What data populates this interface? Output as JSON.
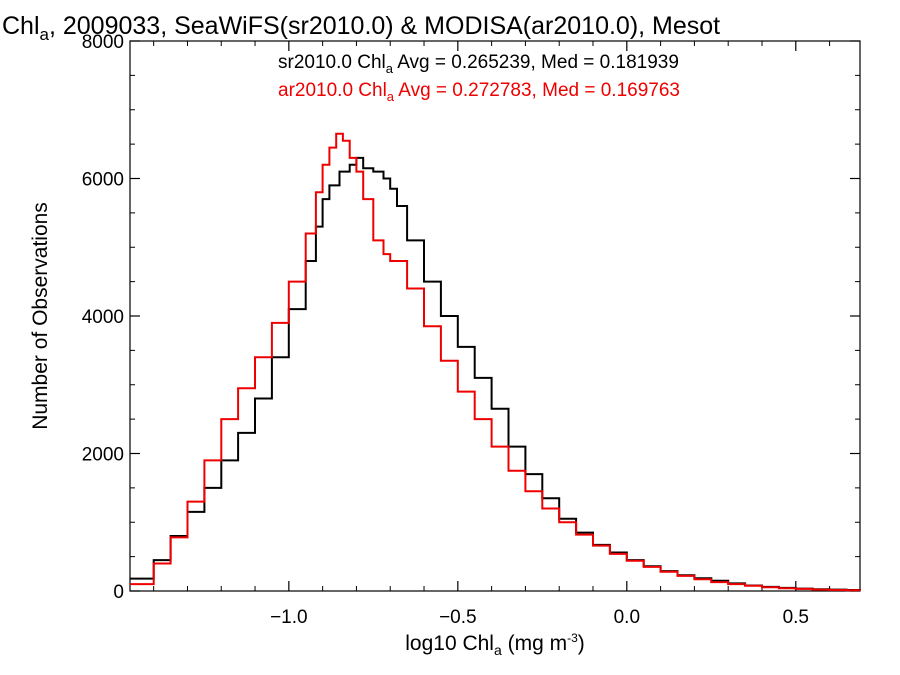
{
  "chart_data": {
    "type": "line",
    "title_main": "Chl",
    "title_sub": "a",
    "title_rest": ", 2009033, SeaWiFS(sr2010.0) & MODISA(ar2010.0), Mesot",
    "xlabel_main": "log10 Chl",
    "xlabel_sub": "a",
    "xlabel_rest": " (mg m",
    "xlabel_sup": "-3",
    "xlabel_end": ")",
    "ylabel": "Number of Observations",
    "xlim": [
      -1.47,
      0.69
    ],
    "ylim": [
      0,
      8000
    ],
    "xticks": [
      -1.0,
      -0.5,
      0.0,
      0.5
    ],
    "xtick_labels": [
      "−1.0",
      "−0.5",
      "0.0",
      "0.5"
    ],
    "yticks": [
      0,
      2000,
      4000,
      6000,
      8000
    ],
    "ytick_labels": [
      "0",
      "2000",
      "4000",
      "6000",
      "8000"
    ],
    "grid": false,
    "legend_position": "top-right",
    "series": [
      {
        "name": "sr2010.0",
        "label_main": "sr2010.0 Chl",
        "label_sub": "a",
        "label_rest": " Avg = 0.265239, Med = 0.181939",
        "color": "#000000",
        "x": [
          -1.47,
          -1.4,
          -1.35,
          -1.3,
          -1.25,
          -1.2,
          -1.15,
          -1.1,
          -1.05,
          -1.0,
          -0.95,
          -0.92,
          -0.9,
          -0.88,
          -0.85,
          -0.82,
          -0.8,
          -0.78,
          -0.75,
          -0.72,
          -0.7,
          -0.68,
          -0.65,
          -0.6,
          -0.55,
          -0.5,
          -0.45,
          -0.4,
          -0.35,
          -0.3,
          -0.25,
          -0.2,
          -0.15,
          -0.1,
          -0.05,
          0.0,
          0.05,
          0.1,
          0.15,
          0.2,
          0.25,
          0.3,
          0.35,
          0.4,
          0.45,
          0.5,
          0.55,
          0.6,
          0.65,
          0.69
        ],
        "y": [
          180,
          450,
          800,
          1150,
          1500,
          1900,
          2300,
          2800,
          3400,
          4100,
          4800,
          5300,
          5700,
          5900,
          6100,
          6200,
          6300,
          6150,
          6100,
          6000,
          5850,
          5600,
          5100,
          4500,
          4000,
          3550,
          3100,
          2650,
          2100,
          1700,
          1350,
          1050,
          850,
          670,
          560,
          450,
          360,
          290,
          230,
          185,
          150,
          110,
          80,
          60,
          45,
          35,
          25,
          20,
          15,
          10
        ]
      },
      {
        "name": "ar2010.0",
        "label_main": "ar2010.0 Chl",
        "label_sub": "a",
        "label_rest": " Avg = 0.272783, Med = 0.169763",
        "color": "#ee0000",
        "x": [
          -1.47,
          -1.4,
          -1.35,
          -1.3,
          -1.25,
          -1.2,
          -1.15,
          -1.1,
          -1.05,
          -1.0,
          -0.95,
          -0.92,
          -0.9,
          -0.88,
          -0.86,
          -0.84,
          -0.82,
          -0.8,
          -0.78,
          -0.75,
          -0.72,
          -0.7,
          -0.65,
          -0.6,
          -0.55,
          -0.5,
          -0.45,
          -0.4,
          -0.35,
          -0.3,
          -0.25,
          -0.2,
          -0.15,
          -0.1,
          -0.05,
          0.0,
          0.05,
          0.1,
          0.15,
          0.2,
          0.25,
          0.3,
          0.35,
          0.4,
          0.45,
          0.5,
          0.55,
          0.6,
          0.65,
          0.69
        ],
        "y": [
          100,
          400,
          780,
          1300,
          1900,
          2500,
          2950,
          3400,
          3900,
          4500,
          5200,
          5800,
          6200,
          6450,
          6650,
          6550,
          6300,
          6100,
          5700,
          5100,
          4900,
          4800,
          4400,
          3850,
          3350,
          2900,
          2500,
          2100,
          1750,
          1450,
          1200,
          1000,
          820,
          660,
          540,
          440,
          350,
          280,
          220,
          170,
          130,
          100,
          75,
          55,
          40,
          30,
          20,
          15,
          10,
          8
        ]
      }
    ]
  }
}
